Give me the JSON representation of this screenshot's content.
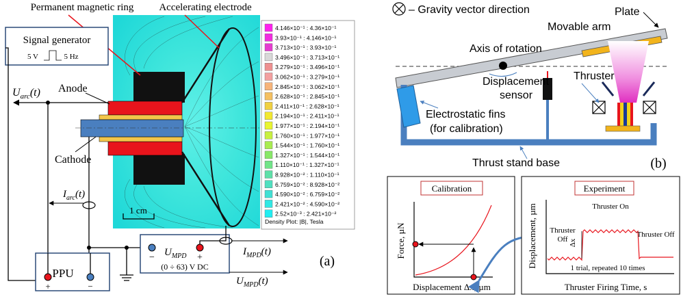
{
  "panel_a": {
    "label_magnet": "Permanent magnetic ring",
    "label_electrode": "Accelerating electrode",
    "signal_generator": {
      "title": "Signal generator",
      "voltage": "5 V",
      "frequency": "5 Hz"
    },
    "u_arc": {
      "main": "U",
      "sub": "arc",
      "tail": "(t)"
    },
    "label_anode": "Anode",
    "label_cathode": "Cathode",
    "i_arc": {
      "main": "I",
      "sub": "arc",
      "tail": "(t)"
    },
    "scale_bar": "1 cm",
    "legend": {
      "entries": [
        {
          "label": "4.146×10⁻¹ : 4.36×10⁻¹",
          "color": "#ff22ee"
        },
        {
          "label": "3.93×10⁻¹ : 4.146×10⁻¹",
          "color": "#f22ce0"
        },
        {
          "label": "3.713×10⁻¹ : 3.93×10⁻¹",
          "color": "#e53cd0"
        },
        {
          "label": "3.496×10⁻¹ : 3.713×10⁻¹",
          "color": "#d8d8d8"
        },
        {
          "label": "3.279×10⁻¹ : 3.496×10⁻¹",
          "color": "#ee9090"
        },
        {
          "label": "3.062×10⁻¹ : 3.279×10⁻¹",
          "color": "#f3a0a0"
        },
        {
          "label": "2.845×10⁻¹ : 3.062×10⁻¹",
          "color": "#f7b47a"
        },
        {
          "label": "2.628×10⁻¹ : 2.845×10⁻¹",
          "color": "#f5c060"
        },
        {
          "label": "2.411×10⁻¹ : 2.628×10⁻¹",
          "color": "#f0d040"
        },
        {
          "label": "2.194×10⁻¹ : 2.411×10⁻¹",
          "color": "#f2e830"
        },
        {
          "label": "1.977×10⁻¹ : 2.194×10⁻¹",
          "color": "#e8f530"
        },
        {
          "label": "1.760×10⁻¹ : 1.977×10⁻¹",
          "color": "#c8f040"
        },
        {
          "label": "1.544×10⁻¹ : 1.760×10⁻¹",
          "color": "#a8ec50"
        },
        {
          "label": "1.327×10⁻¹ : 1.544×10⁻¹",
          "color": "#88e868"
        },
        {
          "label": "1.110×10⁻¹ : 1.327×10⁻¹",
          "color": "#70e488"
        },
        {
          "label": "8.928×10⁻² : 1.110×10⁻¹",
          "color": "#5ee0a8"
        },
        {
          "label": "6.759×10⁻² : 8.928×10⁻²",
          "color": "#50e0c0"
        },
        {
          "label": "4.590×10⁻² : 6.759×10⁻²",
          "color": "#40e0d4"
        },
        {
          "label": "2.421×10⁻² : 4.590×10⁻²",
          "color": "#30e8e4"
        },
        {
          "label": "2.52×10⁻³ : 2.421×10⁻²",
          "color": "#20eef2"
        }
      ],
      "caption": "Density Plot: |B|, Tesla"
    },
    "supply": {
      "minus": "−",
      "plus": "+",
      "u_mpd": {
        "main": "U",
        "sub": "MPD"
      },
      "range": "(0 ÷ 63) V DC"
    },
    "i_mpd": {
      "main": "I",
      "sub": "MPD",
      "tail": "(t)"
    },
    "u_mpd_t": {
      "main": "U",
      "sub": "MPD",
      "tail": "(t)"
    },
    "ppu": {
      "title": "PPU",
      "plus": "+",
      "minus": "−"
    },
    "panel_label": "(a)"
  },
  "panel_b": {
    "gravity_legend": "– Gravity vector direction",
    "label_plate": "Plate",
    "label_arm": "Movable arm",
    "label_axis": "Axis of rotation",
    "label_sensor": [
      "Displacement",
      "sensor"
    ],
    "label_thruster": "Thruster",
    "label_fins": [
      "Electrostatic fins",
      "(for calibration)"
    ],
    "label_base": "Thrust stand base",
    "panel_label": "(b)",
    "calibration": {
      "title": "Calibration",
      "y_label": "Force, µN",
      "x_label": "Displacement Δx, µm"
    },
    "experiment": {
      "title": "Experiment",
      "y_label": "Displacement, µm",
      "x_label": "Thruster Firing Time, s",
      "on": "Thruster On",
      "off_left": [
        "Thruster",
        "Off"
      ],
      "off_right": "Thruster Off",
      "delta": "Δx",
      "note": "1 trial, repeated 10 times"
    }
  }
}
